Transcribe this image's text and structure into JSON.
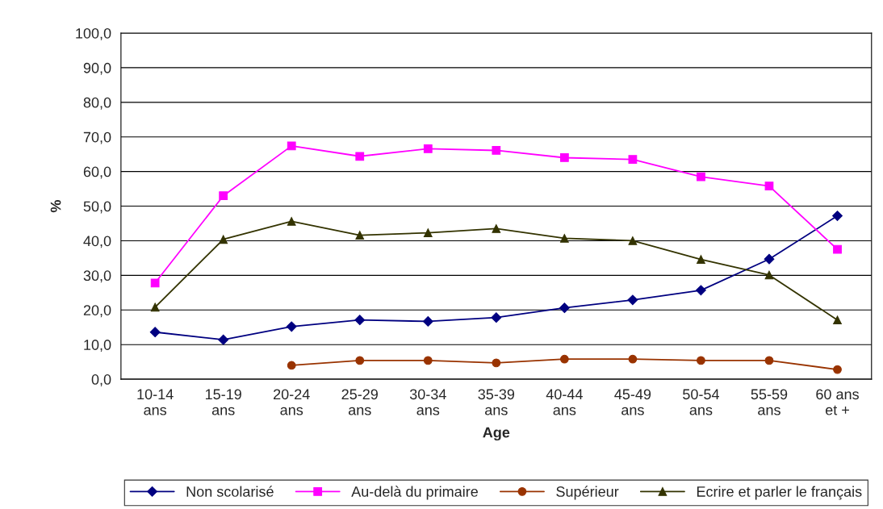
{
  "chart_data": {
    "type": "line",
    "xlabel": "Age",
    "ylabel": "%",
    "categories": [
      "10-14\nans",
      "15-19\nans",
      "20-24\nans",
      "25-29\nans",
      "30-34\nans",
      "35-39\nans",
      "40-44\nans",
      "45-49\nans",
      "50-54\nans",
      "55-59\nans",
      "60 ans\net +"
    ],
    "series": [
      {
        "name": "Non scolarisé",
        "color": "#000080",
        "marker": "diamond",
        "values": [
          13.6,
          11.4,
          15.2,
          17.1,
          16.7,
          17.8,
          20.6,
          22.9,
          25.7,
          34.7,
          47.2
        ]
      },
      {
        "name": "Au-delà du primaire",
        "color": "#ff00ff",
        "marker": "square",
        "values": [
          27.8,
          53.0,
          67.4,
          64.4,
          66.6,
          66.1,
          64.0,
          63.5,
          58.5,
          55.8,
          37.5
        ]
      },
      {
        "name": "Supérieur",
        "color": "#993300",
        "marker": "circle",
        "values": [
          null,
          null,
          4.0,
          5.4,
          5.4,
          4.7,
          5.8,
          5.8,
          5.4,
          5.4,
          2.8
        ]
      },
      {
        "name": "Ecrire et parler le français",
        "color": "#333300",
        "marker": "triangle",
        "values": [
          20.8,
          40.4,
          45.6,
          41.6,
          42.3,
          43.5,
          40.7,
          40.0,
          34.6,
          30.1,
          17.1
        ]
      }
    ],
    "ylim": [
      0,
      100
    ],
    "yticks": [
      {
        "value": 0,
        "label": "0,0"
      },
      {
        "value": 10,
        "label": "10,0"
      },
      {
        "value": 20,
        "label": "20,0"
      },
      {
        "value": 30,
        "label": "30,0"
      },
      {
        "value": 40,
        "label": "40,0"
      },
      {
        "value": 50,
        "label": "50,0"
      },
      {
        "value": 60,
        "label": "60,0"
      },
      {
        "value": 70,
        "label": "70,0"
      },
      {
        "value": 80,
        "label": "80,0"
      },
      {
        "value": 90,
        "label": "90,0"
      },
      {
        "value": 100,
        "label": "100,0"
      }
    ],
    "grid": "y",
    "legend": "bottom",
    "line_style": "solid"
  }
}
